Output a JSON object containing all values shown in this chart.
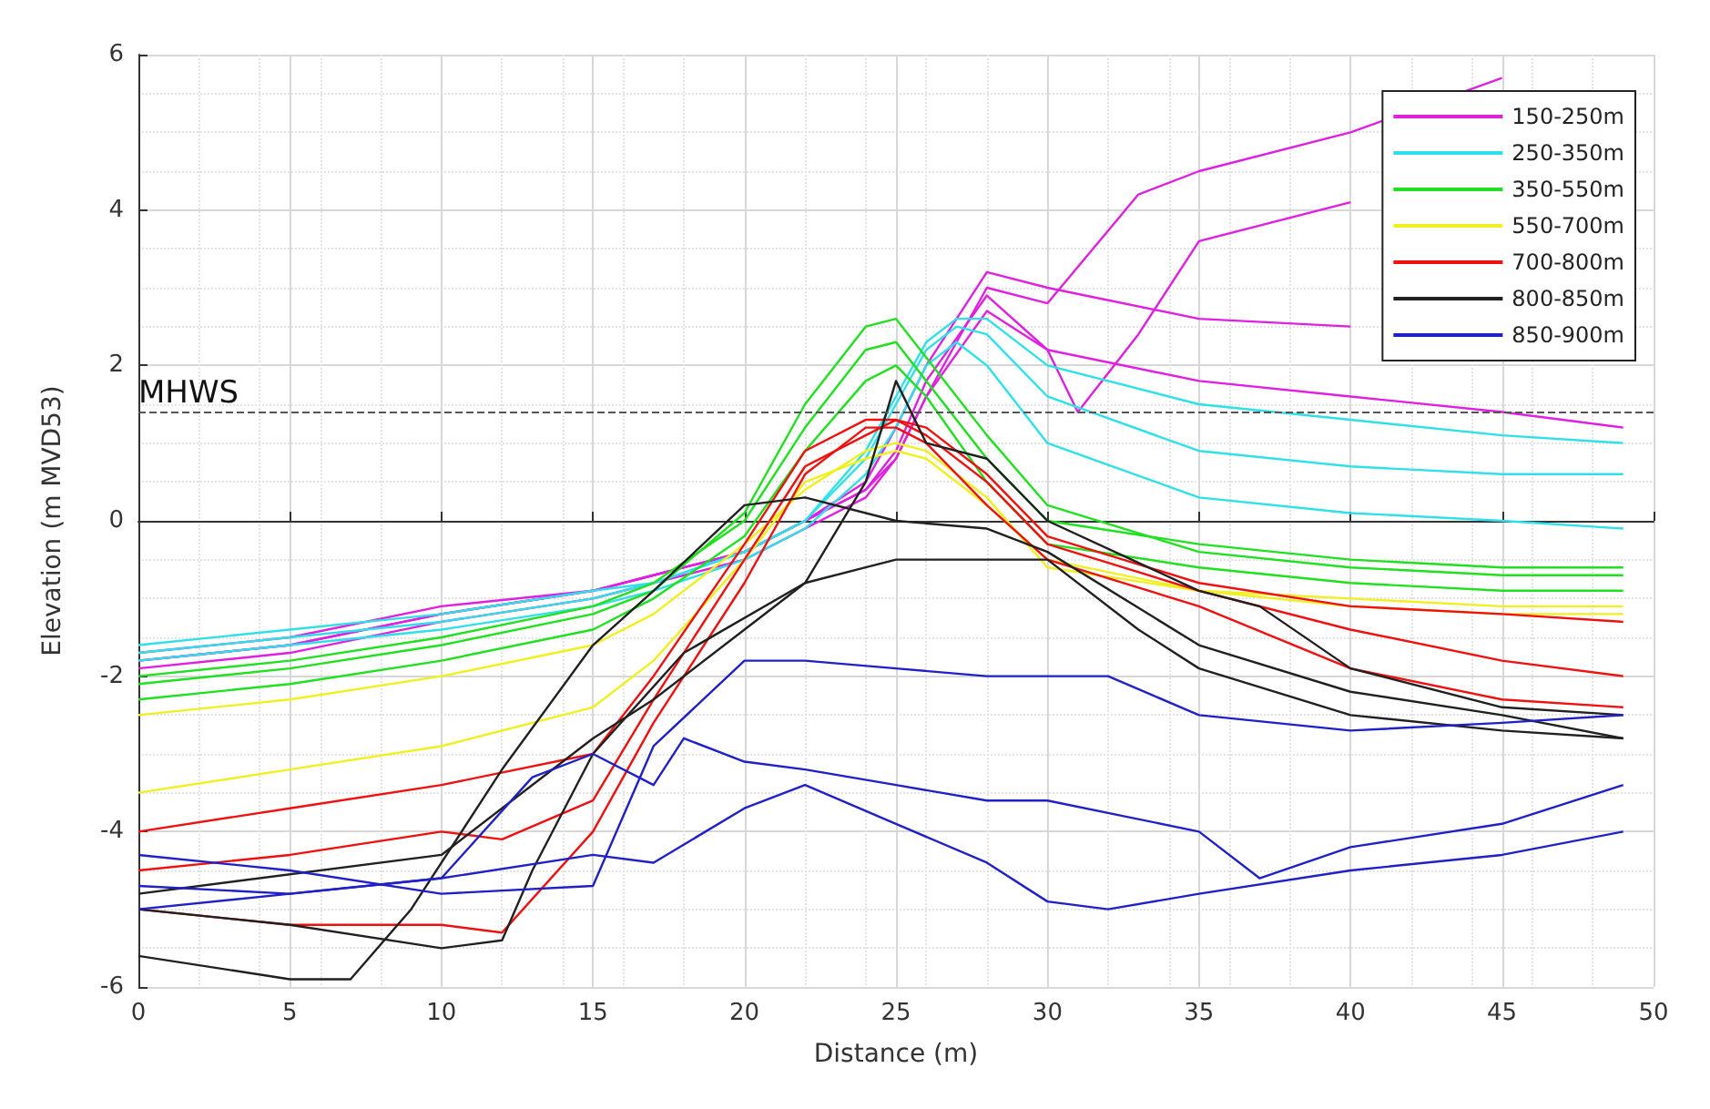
{
  "chart_data": {
    "type": "line",
    "xlabel": "Distance (m)",
    "ylabel": "Elevation (m MVD53)",
    "xlim": [
      0,
      50
    ],
    "xticks": [
      0,
      5,
      10,
      15,
      20,
      25,
      30,
      35,
      40,
      45,
      50
    ],
    "ylim": [
      -6,
      6
    ],
    "yticks": [
      -6,
      -4,
      -2,
      0,
      2,
      4,
      6
    ],
    "grid": true,
    "legend": "top right",
    "marker": "none",
    "line_style": "solid",
    "ref_lines": [
      {
        "axis": "y",
        "value": 1.4,
        "label": "MHWS",
        "color": "#555555",
        "line_style": "dashed"
      }
    ],
    "series": [
      {
        "name": "150-250m",
        "color": "#e020e0",
        "x": [
          0,
          5,
          10,
          15,
          17,
          20,
          22,
          24,
          25,
          26,
          28,
          30,
          35,
          40
        ],
        "values": [
          -1.8,
          -1.6,
          -1.2,
          -0.9,
          -0.7,
          -0.4,
          0,
          0.5,
          1.2,
          2.0,
          3.2,
          3.0,
          2.6,
          2.5
        ]
      },
      {
        "color": "#e020e0",
        "x": [
          0,
          5,
          10,
          15,
          17,
          20,
          22,
          24,
          25,
          26,
          28,
          30,
          31,
          33,
          35,
          40
        ],
        "values": [
          -1.7,
          -1.5,
          -1.1,
          -0.9,
          -0.7,
          -0.4,
          0,
          0.4,
          0.9,
          1.8,
          2.9,
          2.2,
          1.4,
          2.4,
          3.6,
          4.1
        ]
      },
      {
        "color": "#e020e0",
        "x": [
          0,
          5,
          10,
          15,
          17,
          20,
          22,
          24,
          25,
          26,
          28,
          30,
          33,
          35,
          40,
          45
        ],
        "values": [
          -1.9,
          -1.7,
          -1.3,
          -1.0,
          -0.8,
          -0.5,
          -0.1,
          0.3,
          0.8,
          1.6,
          3.0,
          2.8,
          4.2,
          4.5,
          5.0,
          5.7
        ]
      },
      {
        "color": "#e020e0",
        "x": [
          0,
          5,
          10,
          15,
          17,
          20,
          22,
          24,
          25,
          26,
          28,
          30,
          35,
          40,
          45,
          49
        ],
        "values": [
          -1.8,
          -1.6,
          -1.2,
          -0.9,
          -0.7,
          -0.4,
          0,
          0.4,
          0.8,
          1.6,
          2.7,
          2.2,
          1.8,
          1.6,
          1.4,
          1.2
        ]
      },
      {
        "name": "250-350m",
        "color": "#30e0e8",
        "x": [
          0,
          5,
          10,
          15,
          17,
          20,
          22,
          24,
          25,
          26,
          27,
          28,
          30,
          35,
          40,
          45,
          49
        ],
        "values": [
          -1.7,
          -1.5,
          -1.3,
          -1.0,
          -0.8,
          -0.4,
          0,
          0.8,
          1.5,
          2.2,
          2.5,
          2.4,
          1.6,
          0.9,
          0.7,
          0.6,
          0.6
        ]
      },
      {
        "color": "#30e0e8",
        "x": [
          0,
          5,
          10,
          15,
          17,
          20,
          22,
          24,
          25,
          26,
          27,
          28,
          30,
          35,
          40,
          45,
          49
        ],
        "values": [
          -1.8,
          -1.6,
          -1.4,
          -1.1,
          -0.9,
          -0.5,
          -0.1,
          0.6,
          1.2,
          2.0,
          2.3,
          2.0,
          1.0,
          0.3,
          0.1,
          0,
          -0.1
        ]
      },
      {
        "color": "#30e0e8",
        "x": [
          0,
          5,
          10,
          15,
          17,
          20,
          22,
          24,
          25,
          26,
          27,
          28,
          30,
          35,
          40,
          45,
          49
        ],
        "values": [
          -1.6,
          -1.4,
          -1.2,
          -0.9,
          -0.8,
          -0.4,
          0,
          0.9,
          1.6,
          2.3,
          2.6,
          2.6,
          2.0,
          1.5,
          1.3,
          1.1,
          1.0
        ]
      },
      {
        "name": "350-550m",
        "color": "#20e020",
        "x": [
          0,
          5,
          10,
          15,
          17,
          20,
          22,
          24,
          25,
          26,
          28,
          30,
          35,
          40,
          45,
          49
        ],
        "values": [
          -2.0,
          -1.8,
          -1.5,
          -1.1,
          -0.8,
          0,
          1.2,
          2.2,
          2.3,
          1.8,
          0.8,
          0,
          -0.3,
          -0.5,
          -0.6,
          -0.6
        ]
      },
      {
        "color": "#20e020",
        "x": [
          0,
          5,
          10,
          15,
          17,
          20,
          22,
          24,
          25,
          26,
          28,
          30,
          35,
          40,
          45,
          49
        ],
        "values": [
          -2.3,
          -2.1,
          -1.8,
          -1.4,
          -1.0,
          -0.2,
          0.9,
          1.8,
          2.0,
          1.6,
          0.5,
          -0.3,
          -0.6,
          -0.8,
          -0.9,
          -0.9
        ]
      },
      {
        "color": "#20e020",
        "x": [
          0,
          5,
          10,
          15,
          17,
          20,
          22,
          24,
          25,
          26,
          28,
          30,
          35,
          40,
          45,
          49
        ],
        "values": [
          -2.1,
          -1.9,
          -1.6,
          -1.2,
          -0.9,
          0.1,
          1.5,
          2.5,
          2.6,
          2.1,
          1.1,
          0.2,
          -0.4,
          -0.6,
          -0.7,
          -0.7
        ]
      },
      {
        "name": "550-700m",
        "color": "#f0f020",
        "x": [
          0,
          5,
          10,
          15,
          17,
          20,
          22,
          24,
          25,
          26,
          28,
          30,
          35,
          40,
          45,
          49
        ],
        "values": [
          -2.5,
          -2.3,
          -2.0,
          -1.6,
          -1.2,
          -0.3,
          0.4,
          0.9,
          1.0,
          0.9,
          0.3,
          -0.6,
          -0.9,
          -1.0,
          -1.1,
          -1.1
        ]
      },
      {
        "color": "#f0f020",
        "x": [
          0,
          5,
          10,
          15,
          17,
          20,
          22,
          24,
          25,
          26,
          28,
          30,
          35,
          40,
          45,
          49
        ],
        "values": [
          -3.5,
          -3.2,
          -2.9,
          -2.4,
          -1.8,
          -0.5,
          0.5,
          0.8,
          0.9,
          0.8,
          0.2,
          -0.5,
          -0.9,
          -1.1,
          -1.2,
          -1.2
        ]
      },
      {
        "name": "700-800m",
        "color": "#f01010",
        "x": [
          0,
          5,
          10,
          15,
          17,
          20,
          22,
          24,
          25,
          26,
          28,
          30,
          35,
          40,
          45,
          49
        ],
        "values": [
          -4.0,
          -3.7,
          -3.4,
          -3.0,
          -2.0,
          -0.3,
          0.9,
          1.3,
          1.3,
          1.1,
          0.5,
          -0.3,
          -0.9,
          -1.4,
          -1.8,
          -2.0
        ]
      },
      {
        "color": "#f01010",
        "x": [
          0,
          5,
          10,
          12,
          15,
          17,
          20,
          22,
          24,
          25,
          26,
          28,
          30,
          35,
          40,
          45,
          49
        ],
        "values": [
          -5.0,
          -5.2,
          -5.2,
          -5.3,
          -4.0,
          -2.6,
          -0.8,
          0.6,
          1.2,
          1.2,
          1.0,
          0.2,
          -0.5,
          -1.1,
          -1.9,
          -2.3,
          -2.4
        ]
      },
      {
        "color": "#f01010",
        "x": [
          0,
          5,
          10,
          12,
          15,
          17,
          20,
          22,
          24,
          25,
          26,
          28,
          30,
          35,
          40,
          45,
          49
        ],
        "values": [
          -4.5,
          -4.3,
          -4.0,
          -4.1,
          -3.6,
          -2.3,
          -0.5,
          0.7,
          1.1,
          1.3,
          1.2,
          0.6,
          -0.2,
          -0.8,
          -1.1,
          -1.2,
          -1.3
        ]
      },
      {
        "name": "800-850m",
        "color": "#202020",
        "x": [
          0,
          5,
          7,
          9,
          12,
          15,
          17,
          20,
          22,
          25,
          28,
          30,
          35,
          40,
          45,
          49
        ],
        "values": [
          -5.6,
          -5.9,
          -5.9,
          -5.0,
          -3.2,
          -1.6,
          -0.9,
          0.2,
          0.3,
          0.0,
          -0.1,
          -0.4,
          -1.6,
          -2.2,
          -2.5,
          -2.8
        ]
      },
      {
        "color": "#202020",
        "x": [
          0,
          5,
          10,
          12,
          13,
          15,
          18,
          22,
          24,
          25,
          26,
          28,
          30,
          35,
          37,
          40,
          45,
          49
        ],
        "values": [
          -5.0,
          -5.2,
          -5.5,
          -5.4,
          -4.5,
          -3.0,
          -1.7,
          -0.8,
          0.5,
          1.8,
          1.0,
          0.8,
          0,
          -0.9,
          -1.1,
          -1.9,
          -2.4,
          -2.5
        ]
      },
      {
        "color": "#202020",
        "x": [
          0,
          10,
          15,
          17,
          20,
          22,
          24,
          25,
          30,
          33,
          35,
          40,
          45,
          49
        ],
        "values": [
          -4.8,
          -4.3,
          -2.8,
          -2.3,
          -1.4,
          -0.8,
          -0.6,
          -0.5,
          -0.5,
          -1.4,
          -1.9,
          -2.5,
          -2.7,
          -2.8
        ]
      },
      {
        "name": "850-900m",
        "color": "#2020c8",
        "x": [
          0,
          5,
          10,
          15,
          17,
          20,
          22,
          25,
          28,
          30,
          32,
          35,
          40,
          45,
          49
        ],
        "values": [
          -4.3,
          -4.5,
          -4.8,
          -4.7,
          -2.9,
          -1.8,
          -1.8,
          -1.9,
          -2.0,
          -2.0,
          -2.0,
          -2.5,
          -2.7,
          -2.6,
          -2.5
        ]
      },
      {
        "color": "#2020c8",
        "x": [
          0,
          5,
          10,
          13,
          15,
          17,
          18,
          20,
          22,
          25,
          28,
          30,
          35,
          37,
          40,
          45,
          49
        ],
        "values": [
          -4.7,
          -4.8,
          -4.6,
          -3.3,
          -3.0,
          -3.4,
          -2.8,
          -3.1,
          -3.2,
          -3.4,
          -3.6,
          -3.6,
          -4.0,
          -4.6,
          -4.2,
          -3.9,
          -3.4
        ]
      },
      {
        "color": "#2020c8",
        "x": [
          0,
          5,
          10,
          15,
          17,
          20,
          22,
          25,
          28,
          30,
          32,
          35,
          40,
          45,
          49
        ],
        "values": [
          -5.0,
          -4.8,
          -4.6,
          -4.3,
          -4.4,
          -3.7,
          -3.4,
          -3.9,
          -4.4,
          -4.9,
          -5.0,
          -4.8,
          -4.5,
          -4.3,
          -4.0
        ]
      }
    ]
  }
}
